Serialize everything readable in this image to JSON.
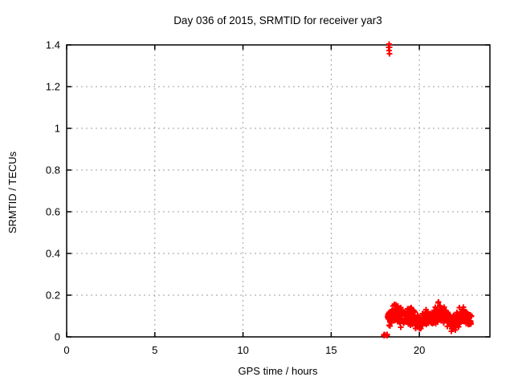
{
  "chart_data": {
    "type": "scatter",
    "title": "Day 036 of 2015, SRMTID for receiver yar3",
    "xlabel": "GPS time / hours",
    "ylabel": "SRMTID / TECUs",
    "xlim": [
      0,
      24
    ],
    "ylim": [
      0,
      1.4
    ],
    "x_ticks": {
      "values": [
        0,
        5,
        10,
        15,
        20
      ],
      "labels": [
        "0",
        "5",
        "10",
        "15",
        "20"
      ]
    },
    "y_ticks": {
      "values": [
        0,
        0.2,
        0.4,
        0.6,
        0.8,
        1.0,
        1.2,
        1.4
      ],
      "labels": [
        "0",
        "0.2",
        "0.4",
        "0.6",
        "0.8",
        "1",
        "1.2",
        "1.4"
      ]
    },
    "grid": true,
    "grid_style": "dashed",
    "grid_color": "#9e9e9e",
    "axis_color": "#000000",
    "background_color": "#ffffff",
    "legend": "none",
    "marker": {
      "shape": "plus",
      "color": "#ff0000",
      "size": 7,
      "stroke_width": 2
    },
    "series": [
      {
        "name": "SRMTID",
        "color": "#ff0000",
        "outlier_points": [
          [
            18.28,
            1.404
          ],
          [
            18.26,
            1.389
          ],
          [
            18.31,
            1.389
          ],
          [
            18.29,
            1.374
          ],
          [
            18.3,
            1.358
          ]
        ],
        "low_points": [
          [
            17.98,
            0.008
          ],
          [
            18.0,
            0.012
          ],
          [
            18.02,
            0.005
          ],
          [
            18.03,
            0.01
          ],
          [
            18.14,
            0.01
          ],
          [
            18.16,
            0.005
          ],
          [
            18.17,
            0.012
          ],
          [
            18.18,
            0.007
          ]
        ],
        "band": {
          "comment_visible_extent": "dense cluster of ~540 points from 18.2h to 22.95h, values ~0.02-0.19 TECUs",
          "x_start": 18.2,
          "x_end": 22.95,
          "count": 540,
          "seed": 73,
          "x_jitter": 0.02,
          "knots": [
            [
              18.2,
              0.08,
              0.04
            ],
            [
              18.45,
              0.105,
              0.05
            ],
            [
              18.65,
              0.115,
              0.055
            ],
            [
              18.9,
              0.095,
              0.05
            ],
            [
              19.2,
              0.085,
              0.042
            ],
            [
              19.5,
              0.105,
              0.052
            ],
            [
              19.75,
              0.085,
              0.05
            ],
            [
              20.05,
              0.065,
              0.045
            ],
            [
              20.3,
              0.085,
              0.05
            ],
            [
              20.55,
              0.1,
              0.046
            ],
            [
              20.85,
              0.095,
              0.05
            ],
            [
              21.2,
              0.13,
              0.055
            ],
            [
              21.45,
              0.105,
              0.05
            ],
            [
              21.8,
              0.06,
              0.045
            ],
            [
              22.1,
              0.075,
              0.045
            ],
            [
              22.4,
              0.112,
              0.048
            ],
            [
              22.65,
              0.095,
              0.045
            ],
            [
              22.95,
              0.075,
              0.035
            ]
          ]
        }
      }
    ]
  }
}
